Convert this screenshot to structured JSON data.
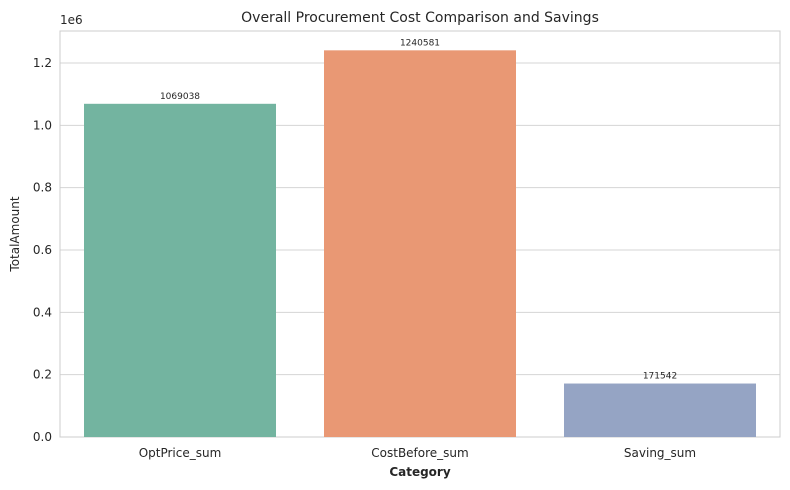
{
  "chart_data": {
    "type": "bar",
    "title": "Overall Procurement Cost Comparison and Savings",
    "xlabel": "Category",
    "ylabel": "TotalAmount",
    "y_offset_label": "1e6",
    "categories": [
      "OptPrice_sum",
      "CostBefore_sum",
      "Saving_sum"
    ],
    "values": [
      1069038,
      1240581,
      171542
    ],
    "data_labels": [
      "1069038",
      "1240581",
      "171542"
    ],
    "colors": [
      "#73b4a0",
      "#e99874",
      "#95a4c4"
    ],
    "ylim": [
      0,
      1302610
    ],
    "yticks": [
      0,
      200000,
      400000,
      600000,
      800000,
      1000000,
      1200000
    ],
    "ytick_labels": [
      "0.0",
      "0.2",
      "0.4",
      "0.6",
      "0.8",
      "1.0",
      "1.2"
    ],
    "grid": true
  }
}
